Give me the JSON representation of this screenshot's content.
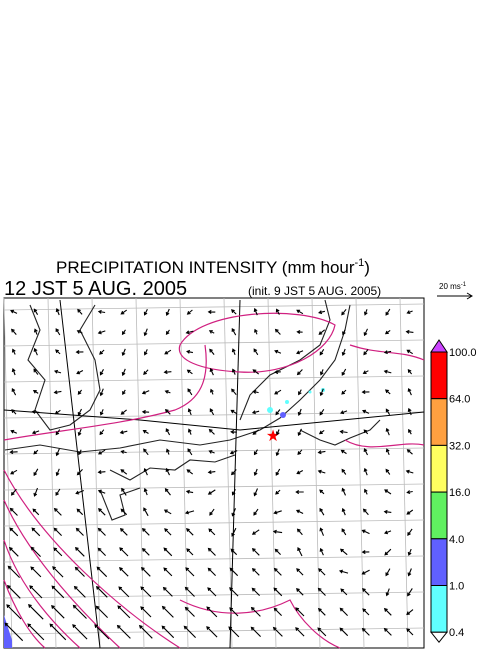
{
  "header": {
    "title": "PRECIPITATION INTENSITY (mm hour",
    "title_exponent": "-1",
    "title_close": ")",
    "valid_time": "12 JST 5 AUG. 2005",
    "init_time": "(init. 9 JST 5 AUG. 2005)"
  },
  "wind_scale": {
    "label": "20 ms",
    "exponent": "-1"
  },
  "colorbar": {
    "labels": [
      "100.0",
      "64.0",
      "32.0",
      "16.0",
      "4.0",
      "1.0",
      "0.4"
    ],
    "colors": [
      "#cc44ff",
      "#ff0000",
      "#ffa040",
      "#ffff60",
      "#60f060",
      "#6060ff",
      "#60ffff",
      "#ffffff"
    ]
  }
}
